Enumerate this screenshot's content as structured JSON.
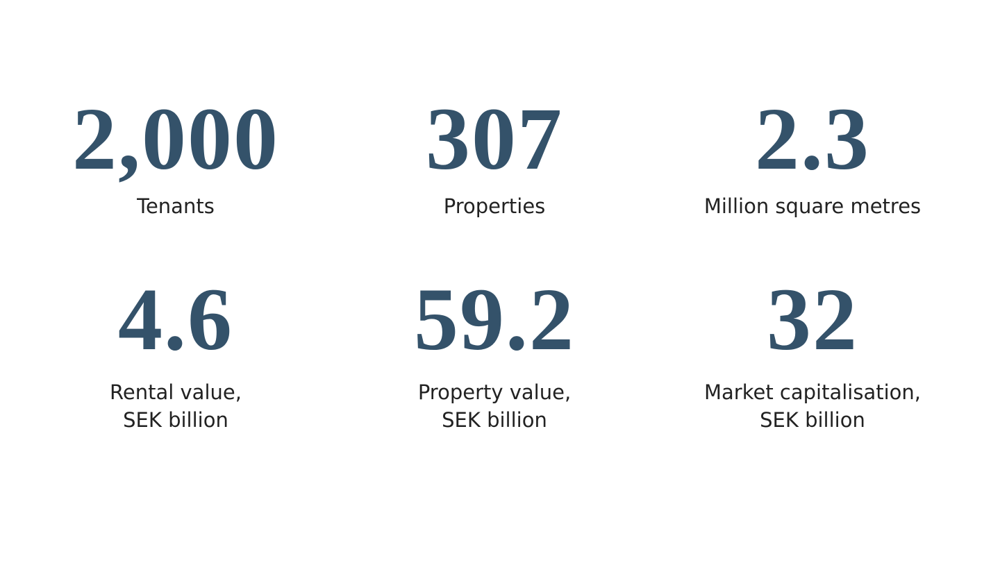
{
  "stats": [
    {
      "value": "2,000",
      "label": [
        "Tenants"
      ]
    },
    {
      "value": "307",
      "label": [
        "Properties"
      ]
    },
    {
      "value": "2.3",
      "label": [
        "Million square metres"
      ]
    },
    {
      "value": "4.6",
      "label": [
        "Rental value,",
        "SEK billion"
      ]
    },
    {
      "value": "59.2",
      "label": [
        "Property value,",
        "SEK billion"
      ]
    },
    {
      "value": "32",
      "label": [
        "Market capitalisation,",
        "SEK billion"
      ]
    }
  ]
}
